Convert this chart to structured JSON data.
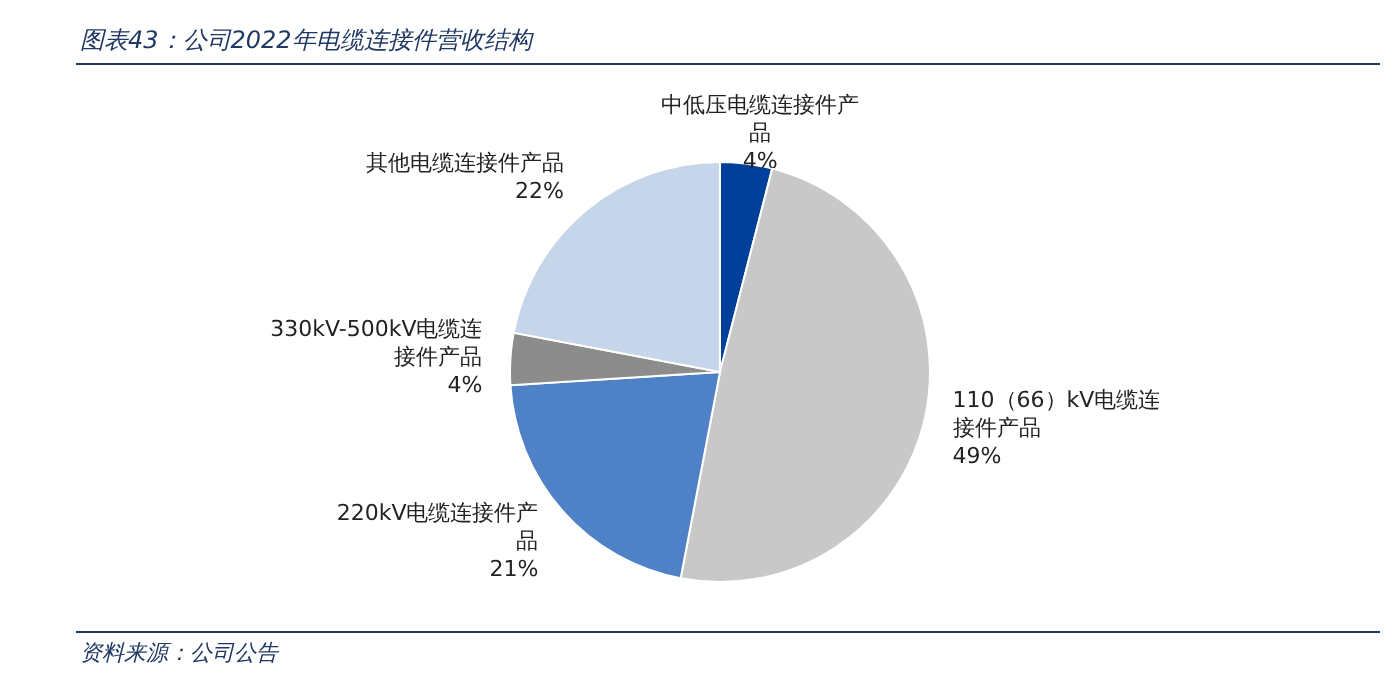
{
  "chart_data": {
    "type": "pie",
    "title": "图表43：公司2022年电缆连接件营收结构",
    "categories": [
      "中低压电缆连接件产品",
      "110（66）kV电缆连接件产品",
      "220kV电缆连接件产品",
      "330kV-500kV电缆连接件产品",
      "其他电缆连接件产品"
    ],
    "values": [
      4,
      49,
      21,
      4,
      22
    ],
    "colors": [
      "#003f9a",
      "#c8c8c8",
      "#4f81c7",
      "#8c8c8c",
      "#c5d5ea"
    ],
    "value_labels": [
      "4%",
      "49%",
      "21%",
      "4%",
      "22%"
    ],
    "annotations": [
      "资料来源：公司公告"
    ]
  }
}
